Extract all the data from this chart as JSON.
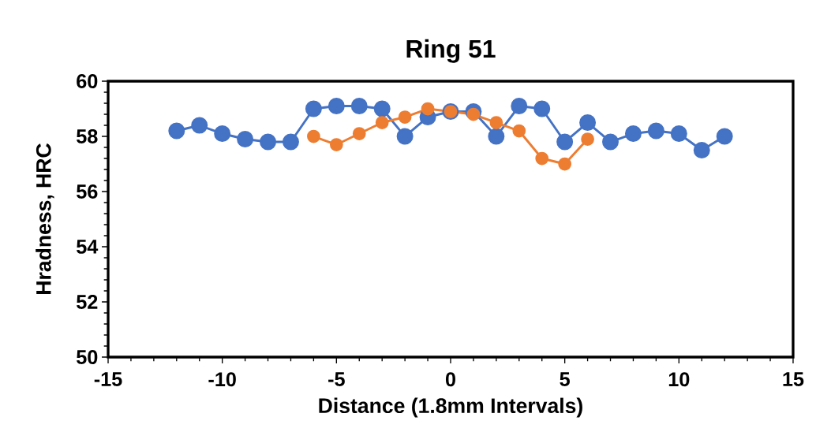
{
  "chart_data": {
    "type": "line",
    "title": "Ring 51",
    "xlabel": "Distance (1.8mm Intervals)",
    "ylabel": "Hradness, HRC",
    "xlim": [
      -15,
      15
    ],
    "xticks": [
      -15,
      -10,
      -5,
      0,
      5,
      10,
      15
    ],
    "ylim": [
      50,
      60
    ],
    "yticks": [
      50,
      52,
      54,
      56,
      58,
      60
    ],
    "grid": false,
    "marker": "circle",
    "line_style": "solid",
    "series": [
      {
        "color": "#4472c4",
        "x": [
          -12,
          -11,
          -10,
          -9,
          -8,
          -7,
          -6,
          -5,
          -4,
          -3,
          -2,
          -1,
          0,
          1,
          2,
          3,
          4,
          5,
          6,
          7,
          8,
          9,
          10,
          11,
          12
        ],
        "values": [
          58.2,
          58.4,
          58.1,
          57.9,
          57.8,
          57.8,
          59.0,
          59.1,
          59.1,
          59.0,
          58.0,
          58.7,
          58.9,
          58.9,
          58.0,
          59.1,
          59.0,
          57.8,
          58.5,
          57.8,
          58.1,
          58.2,
          58.1,
          57.5,
          58.0
        ]
      },
      {
        "color": "#ed7d31",
        "x": [
          -6,
          -5,
          -4,
          -3,
          -2,
          -1,
          0,
          1,
          2,
          3,
          4,
          5,
          6
        ],
        "values": [
          58.0,
          57.7,
          58.1,
          58.5,
          58.7,
          59.0,
          58.9,
          58.8,
          58.5,
          58.2,
          57.2,
          57.0,
          57.9
        ]
      }
    ]
  }
}
